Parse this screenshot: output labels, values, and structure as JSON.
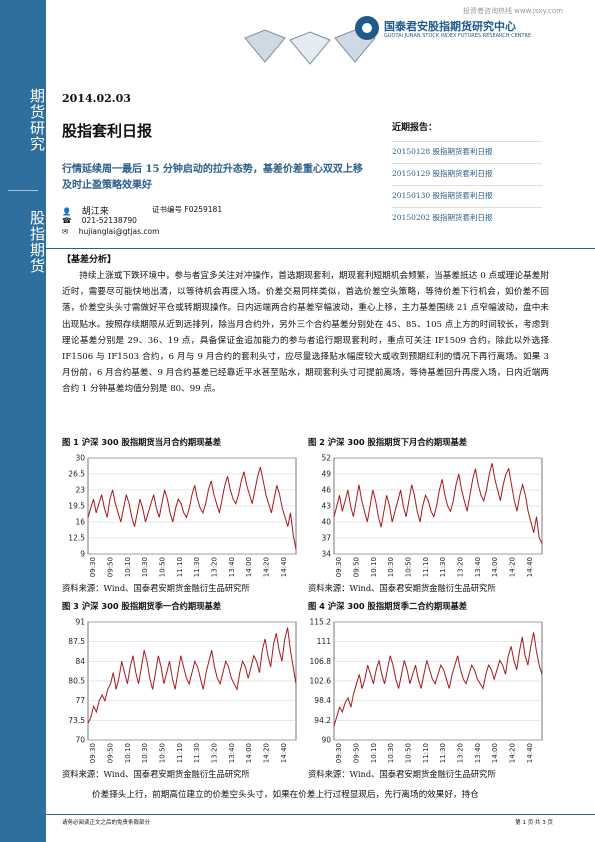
{
  "header": {
    "watermark": "投资者咨询热线 www.jsxy.com",
    "logo_cn": "国泰君安股指期货研究中心",
    "logo_en": "GUOTAI JUNAN STOCK INDEX FUTURES RESEARCH CENTRE"
  },
  "sidebar": {
    "label1": "期货研究",
    "label2": "股指期货"
  },
  "report": {
    "date": "2014.02.03",
    "title": "股指套利日报",
    "subtitle": "行情延续周一最后 15 分钟启动的拉升态势，基差价差重心双双上移及时止盈策略效果好",
    "author": "胡江来",
    "cert_label": "证书编号 F0259181",
    "phone": "021-52138790",
    "email": "hujianglai@gtjas.com"
  },
  "recent": {
    "heading": "近期报告：",
    "items": [
      "20150128 股指期货套利日报",
      "20150129 股指期货套利日报",
      "20150130 股指期货套利日报",
      "20150202 股指期货套利日报"
    ]
  },
  "section_title": "【基差分析】",
  "body": "持续上涨或下跌环境中，参与者宜多关注对冲操作，首选期现套利，期现套利短期机会频繁，当基差抵达 0 点或理论基差附近时，需要尽可能快地出清，以等待机会再度入场。价差交易同样类似，首选价差空头策略，等待价差下行机会，如价差不回落，价差空头头寸需做好平仓或转期现操作。日内远端两合约基差窄幅波动，重心上移，主力基差围绕 21 点窄幅波动，盘中未出现贴水。按照存续期限从近到远排列，除当月合约外，另外三个合约基差分别处在 45、85、105 点上方的时间较长，考虑到理论基差分别是 29、36、19 点，具备保证金追加能力的参与者追行期现套利时，重点可关注 IF1509 合约，除此以外选择 IF1506 与 IF1503 合约，6 月与 9 月合约的套利头寸，应尽量选择贴水幅度较大或收到预期红利的情况下再行离场。如果 3 月份前，6 月合约基差、9 月合约基差已经靠近平水甚至贴水，期现套利头寸可提前离场，等待基差回升再度入场，日内近端两合约 1 分钟基差均值分别是 80、99 点。",
  "figures": [
    {
      "title": "图 1 沪深 300 股指期货当月合约期现基差",
      "source": "资料来源：Wind、国泰君安期货金融衍生品研究所"
    },
    {
      "title": "图 2 沪深 300 股指期货下月合约期现基差",
      "source": "资料来源：Wind、国泰君安期货金融衍生品研究所"
    },
    {
      "title": "图 3 沪深 300 股指期货季一合约期现基差",
      "source": "资料来源：Wind、国泰君安期货金融衍生品研究所"
    },
    {
      "title": "图 4 沪深 300 股指期货季二合约期现基差",
      "source": "资料来源：Wind、国泰君安期货金融衍生品研究所"
    }
  ],
  "bottom_text": "价差择头上行，前期高位建立的价差空头头寸，如果在价差上行过程显现后，先行离场的效果好，持仓",
  "footer": {
    "left": "请务必阅读正文之后的免责条款部分",
    "right": "第 1 页 共 3 页"
  },
  "chart_data": [
    {
      "type": "line",
      "ylim": [
        9,
        30
      ],
      "yticks": [
        9,
        12.5,
        16,
        19.5,
        23,
        26.5,
        30
      ],
      "xticks": [
        "09:30",
        "09:50",
        "10:10",
        "10:30",
        "10:50",
        "11:10",
        "11:30",
        "13:20",
        "13:40",
        "14:00",
        "14:20",
        "14:40"
      ],
      "series": [
        {
          "values": [
            17,
            19,
            21,
            18,
            20,
            22,
            19,
            17,
            21,
            23,
            20,
            18,
            16,
            19,
            22,
            20,
            17,
            15,
            18,
            21,
            19,
            16,
            18,
            20,
            22,
            19,
            17,
            20,
            23,
            21,
            18,
            16,
            19,
            21,
            20,
            18,
            17,
            19,
            22,
            24,
            21,
            19,
            18,
            20,
            23,
            25,
            22,
            20,
            18,
            21,
            24,
            26,
            23,
            21,
            20,
            22,
            25,
            27,
            24,
            22,
            20,
            23,
            26,
            28,
            25,
            22,
            20,
            18,
            21,
            24,
            22,
            19,
            17,
            15,
            18,
            13,
            10
          ]
        }
      ]
    },
    {
      "type": "line",
      "ylim": [
        34,
        52
      ],
      "yticks": [
        34,
        37,
        40,
        43,
        46,
        49,
        52
      ],
      "xticks": [
        "09:30",
        "09:50",
        "10:10",
        "10:30",
        "10:50",
        "11:10",
        "11:30",
        "13:20",
        "13:40",
        "14:00",
        "14:20",
        "14:40"
      ],
      "series": [
        {
          "values": [
            41,
            43,
            45,
            42,
            44,
            46,
            43,
            41,
            44,
            47,
            44,
            42,
            40,
            43,
            46,
            44,
            41,
            39,
            42,
            45,
            43,
            40,
            42,
            44,
            46,
            43,
            41,
            44,
            47,
            45,
            42,
            40,
            43,
            45,
            44,
            42,
            41,
            43,
            46,
            48,
            45,
            43,
            42,
            44,
            47,
            49,
            46,
            44,
            42,
            45,
            48,
            50,
            47,
            45,
            44,
            46,
            49,
            51,
            48,
            46,
            44,
            47,
            49,
            50,
            47,
            44,
            42,
            45,
            47,
            45,
            42,
            40,
            38,
            41,
            37,
            36
          ]
        }
      ]
    },
    {
      "type": "line",
      "ylim": [
        70,
        91
      ],
      "yticks": [
        70,
        73.5,
        77,
        80.5,
        84,
        87.5,
        91
      ],
      "xticks": [
        "09:30",
        "09:50",
        "10:10",
        "10:30",
        "10:50",
        "11:10",
        "11:30",
        "13:20",
        "13:40",
        "14:00",
        "14:20",
        "14:40"
      ],
      "series": [
        {
          "values": [
            73,
            74,
            76,
            75,
            77,
            78,
            77,
            79,
            80,
            82,
            79,
            81,
            84,
            82,
            80,
            83,
            85,
            82,
            80,
            83,
            86,
            84,
            81,
            79,
            82,
            85,
            83,
            80,
            82,
            84,
            81,
            79,
            82,
            85,
            83,
            81,
            80,
            82,
            84,
            83,
            81,
            79,
            82,
            84,
            86,
            83,
            81,
            80,
            82,
            84,
            83,
            81,
            80,
            79,
            82,
            84,
            83,
            81,
            83,
            85,
            84,
            82,
            86,
            88,
            85,
            83,
            87,
            89,
            86,
            84,
            88,
            90,
            86,
            83,
            80
          ]
        }
      ]
    },
    {
      "type": "line",
      "ylim": [
        90,
        115.2
      ],
      "yticks": [
        90,
        94.2,
        98.4,
        102.6,
        106.8,
        111,
        115.2
      ],
      "xticks": [
        "09:30",
        "09:50",
        "10:10",
        "10:30",
        "10:50",
        "11:10",
        "11:30",
        "13:20",
        "13:40",
        "14:00",
        "14:20",
        "14:40"
      ],
      "series": [
        {
          "values": [
            93,
            95,
            97,
            96,
            98,
            99,
            97,
            100,
            102,
            104,
            101,
            103,
            106,
            104,
            102,
            105,
            107,
            104,
            102,
            105,
            108,
            106,
            103,
            101,
            104,
            107,
            105,
            102,
            104,
            106,
            103,
            101,
            104,
            107,
            105,
            103,
            102,
            104,
            106,
            105,
            103,
            101,
            104,
            106,
            108,
            105,
            103,
            102,
            104,
            106,
            105,
            103,
            102,
            101,
            104,
            106,
            105,
            103,
            105,
            107,
            106,
            104,
            108,
            110,
            107,
            105,
            109,
            112,
            108,
            106,
            110,
            113,
            109,
            106,
            104
          ]
        }
      ]
    }
  ]
}
